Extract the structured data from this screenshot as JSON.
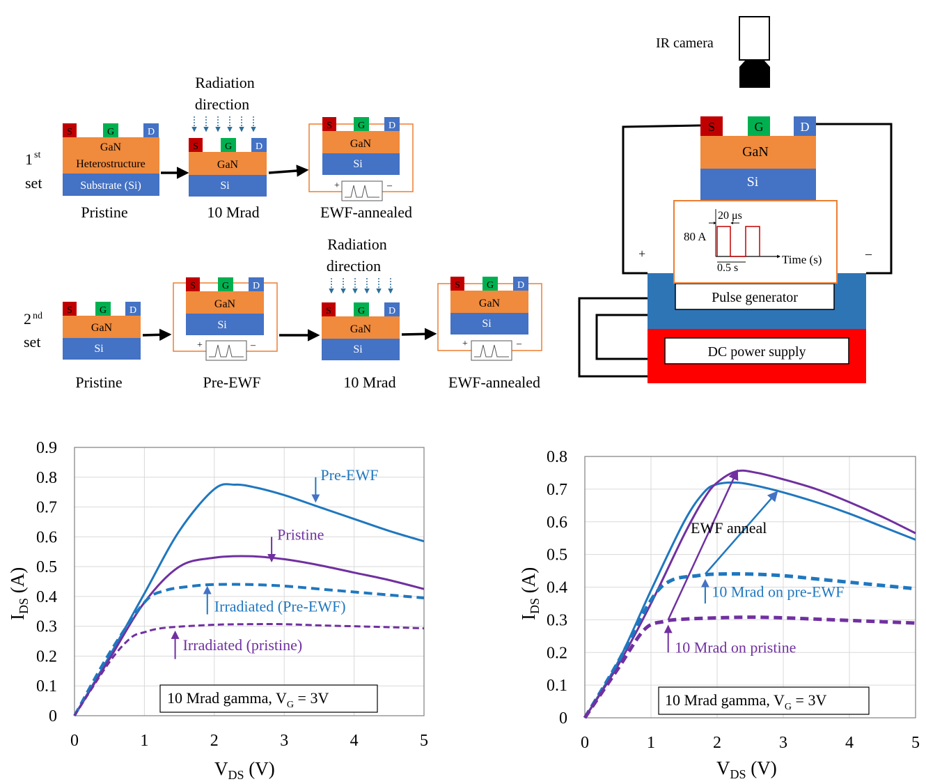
{
  "colors": {
    "blue": "#1f77bf",
    "purple": "#7030a0",
    "orange": "#ed7d31",
    "gan": "#f08a3c",
    "si": "#4472c4",
    "src": "#c00000",
    "gate": "#00b050",
    "drain": "#4472c4",
    "pulse_gen": "#2e75b6",
    "dc": "#ff0000",
    "pulse_wave": "#c00000",
    "arrow_blue": "#4472c4"
  },
  "schematic": {
    "set1": {
      "label_num": "1",
      "label_sup": "st",
      "label_word": "set"
    },
    "set2": {
      "label_num": "2",
      "label_sup": "nd",
      "label_word": "set"
    },
    "radiation_line1": "Radiation",
    "radiation_line2": "direction",
    "pristine": "Pristine",
    "pre_ewf": "Pre-EWF",
    "mrad10": "10 Mrad",
    "ewf_annealed": "EWF-annealed",
    "gan": "GaN",
    "gan_hetero_line1": "GaN",
    "gan_hetero_line2": "Heterostructure",
    "substrate": "Substrate (Si)",
    "si": "Si",
    "s": "S",
    "g": "G",
    "d": "D",
    "plus": "+",
    "minus": "–"
  },
  "setup": {
    "ir_camera": "IR camera",
    "gan": "GaN",
    "si": "Si",
    "s": "S",
    "g": "G",
    "d": "D",
    "pulse_us": "20 μs",
    "amp": "80 A",
    "period": "0.5 s",
    "time_axis": "Time (s)",
    "pulse_generator": "Pulse generator",
    "dc_power": "DC power supply",
    "plus": "+",
    "minus": "–"
  },
  "chart_data": [
    {
      "type": "line",
      "x_label_main": "V",
      "x_label_sub": "DS",
      "x_label_unit": " (V)",
      "y_label_main": "I",
      "y_label_sub": "DS",
      "y_label_unit": " (A)",
      "xlim": [
        0,
        5
      ],
      "ylim": [
        0,
        0.9
      ],
      "x_ticks": [
        "0",
        "1",
        "2",
        "3",
        "4",
        "5"
      ],
      "y_ticks": [
        "0",
        "0.1",
        "0.2",
        "0.3",
        "0.4",
        "0.5",
        "0.6",
        "0.7",
        "0.8",
        "0.9"
      ],
      "grid": true,
      "legend_box_main": "10 Mrad gamma, V",
      "legend_box_sub": "G",
      "legend_box_tail": " = 3V",
      "series": [
        {
          "name": "Pre-EWF",
          "color": "blue",
          "dashed": false,
          "width": 3,
          "x": [
            0,
            0.5,
            1,
            1.5,
            2,
            2.3,
            2.6,
            3,
            3.5,
            4,
            4.5,
            5
          ],
          "y": [
            0,
            0.2,
            0.41,
            0.62,
            0.76,
            0.775,
            0.765,
            0.74,
            0.7,
            0.66,
            0.62,
            0.585
          ]
        },
        {
          "name": "Pristine",
          "color": "purple",
          "dashed": false,
          "width": 3,
          "x": [
            0,
            0.5,
            1,
            1.5,
            2,
            2.5,
            3,
            3.5,
            4,
            4.5,
            5
          ],
          "y": [
            0,
            0.19,
            0.38,
            0.5,
            0.53,
            0.535,
            0.525,
            0.505,
            0.48,
            0.455,
            0.425
          ]
        },
        {
          "name": "Irradiated (Pre-EWF)",
          "color": "blue",
          "dashed": true,
          "width": 4,
          "x": [
            0,
            0.5,
            1,
            1.3,
            1.7,
            2,
            2.5,
            3,
            3.5,
            4,
            4.5,
            5
          ],
          "y": [
            0,
            0.21,
            0.38,
            0.42,
            0.435,
            0.44,
            0.44,
            0.435,
            0.425,
            0.415,
            0.405,
            0.395
          ]
        },
        {
          "name": "Irradiated (pristine)",
          "color": "purple",
          "dashed": true,
          "width": 3,
          "x": [
            0,
            0.5,
            0.8,
            1,
            1.3,
            2,
            2.5,
            3,
            3.5,
            4,
            4.5,
            5
          ],
          "y": [
            0,
            0.18,
            0.26,
            0.28,
            0.295,
            0.305,
            0.307,
            0.307,
            0.303,
            0.3,
            0.297,
            0.293
          ]
        }
      ],
      "annotations": [
        {
          "text": "Pre-EWF",
          "color": "blue",
          "arrow_x": 3.45,
          "arrow_y_from": 0.8,
          "arrow_y_to": 0.72,
          "text_x": 3.52,
          "text_y": 0.79
        },
        {
          "text": "Pristine",
          "color": "purple",
          "arrow_x": 2.82,
          "arrow_y_from": 0.6,
          "arrow_y_to": 0.52,
          "text_x": 2.9,
          "text_y": 0.59
        },
        {
          "text": "Irradiated (Pre-EWF)",
          "color": "blue",
          "arrow_x": 1.9,
          "arrow_y_from": 0.34,
          "arrow_y_to": 0.43,
          "text_x": 2.0,
          "text_y": 0.35
        },
        {
          "text": "Irradiated (pristine)",
          "color": "purple",
          "arrow_x": 1.44,
          "arrow_y_from": 0.19,
          "arrow_y_to": 0.28,
          "text_x": 1.55,
          "text_y": 0.22
        }
      ]
    },
    {
      "type": "line",
      "x_label_main": "V",
      "x_label_sub": "DS",
      "x_label_unit": " (V)",
      "y_label_main": "I",
      "y_label_sub": "DS",
      "y_label_unit": " (A)",
      "xlim": [
        0,
        5
      ],
      "ylim": [
        0,
        0.8
      ],
      "x_ticks": [
        "0",
        "1",
        "2",
        "3",
        "4",
        "5"
      ],
      "y_ticks": [
        "0",
        "0.1",
        "0.2",
        "0.3",
        "0.4",
        "0.5",
        "0.6",
        "0.7",
        "0.8"
      ],
      "grid": true,
      "legend_box_main": "10 Mrad gamma, V",
      "legend_box_sub": "G",
      "legend_box_tail": " = 3V",
      "series": [
        {
          "name": "",
          "color": "blue",
          "dashed": false,
          "width": 3,
          "x": [
            0,
            0.5,
            1,
            1.5,
            1.8,
            2,
            2.3,
            2.6,
            3,
            3.5,
            4,
            4.5,
            5
          ],
          "y": [
            0,
            0.17,
            0.39,
            0.6,
            0.69,
            0.715,
            0.72,
            0.71,
            0.69,
            0.66,
            0.625,
            0.585,
            0.545
          ]
        },
        {
          "name": "",
          "color": "purple",
          "dashed": false,
          "width": 3,
          "x": [
            0,
            0.5,
            1,
            1.5,
            1.8,
            2,
            2.3,
            2.6,
            3,
            3.5,
            4,
            4.5,
            5
          ],
          "y": [
            0,
            0.16,
            0.35,
            0.56,
            0.67,
            0.72,
            0.755,
            0.75,
            0.73,
            0.7,
            0.66,
            0.615,
            0.565
          ]
        },
        {
          "name": "",
          "color": "blue",
          "dashed": true,
          "width": 5,
          "x": [
            0,
            0.5,
            1,
            1.3,
            1.7,
            2,
            2.5,
            3,
            3.5,
            4,
            4.5,
            5
          ],
          "y": [
            0,
            0.17,
            0.36,
            0.42,
            0.435,
            0.44,
            0.44,
            0.435,
            0.425,
            0.415,
            0.405,
            0.395
          ]
        },
        {
          "name": "",
          "color": "purple",
          "dashed": true,
          "width": 5,
          "x": [
            0,
            0.5,
            0.9,
            1.2,
            1.5,
            2,
            2.5,
            3,
            3.5,
            4,
            4.5,
            5
          ],
          "y": [
            0,
            0.15,
            0.27,
            0.295,
            0.302,
            0.306,
            0.308,
            0.306,
            0.302,
            0.298,
            0.294,
            0.29
          ]
        }
      ],
      "annotations": [
        {
          "text": "EWF anneal",
          "color": "black",
          "text_x": 1.6,
          "text_y": 0.565
        },
        {
          "text": "10 Mrad on pre-EWF",
          "color": "blue",
          "arrow_x": 1.82,
          "arrow_y_from": 0.35,
          "arrow_y_to": 0.42,
          "text_x": 1.92,
          "text_y": 0.37
        },
        {
          "text": "10 Mrad on pristine",
          "color": "purple",
          "arrow_x": 1.26,
          "arrow_y_from": 0.2,
          "arrow_y_to": 0.28,
          "text_x": 1.36,
          "text_y": 0.2
        }
      ],
      "anneal_arrows": [
        {
          "color": "purple",
          "from": [
            1.26,
            0.3
          ],
          "to": [
            2.3,
            0.755
          ]
        },
        {
          "color": "blue",
          "from": [
            1.82,
            0.44
          ],
          "to": [
            2.9,
            0.69
          ]
        }
      ]
    }
  ]
}
